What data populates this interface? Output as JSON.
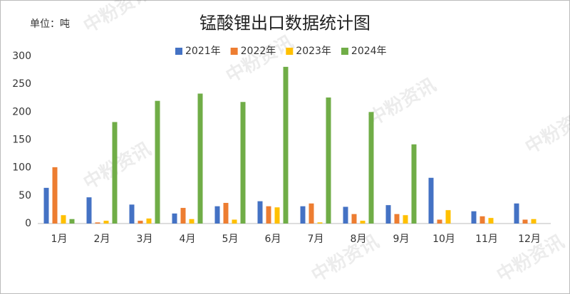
{
  "chart_data": {
    "type": "bar",
    "title": "锰酸锂出口数据统计图",
    "unit_label": "单位：吨",
    "watermark": "中粉资讯",
    "categories": [
      "1月",
      "2月",
      "3月",
      "4月",
      "5月",
      "6月",
      "7月",
      "8月",
      "9月",
      "10月",
      "11月",
      "12月"
    ],
    "series": [
      {
        "name": "2021年",
        "color": "#4472c4",
        "values": [
          64,
          47,
          34,
          18,
          31,
          40,
          31,
          30,
          33,
          82,
          22,
          36
        ]
      },
      {
        "name": "2022年",
        "color": "#ed7d31",
        "values": [
          101,
          2,
          5,
          28,
          37,
          31,
          36,
          17,
          17,
          7,
          13,
          7
        ]
      },
      {
        "name": "2023年",
        "color": "#ffc000",
        "values": [
          15,
          5,
          9,
          8,
          7,
          29,
          2,
          5,
          15,
          24,
          10,
          8
        ]
      },
      {
        "name": "2024年",
        "color": "#70ad47",
        "values": [
          8,
          182,
          220,
          233,
          218,
          281,
          226,
          200,
          142,
          null,
          null,
          null
        ]
      }
    ],
    "ylim": [
      0,
      300
    ],
    "yticks": [
      0,
      50,
      100,
      150,
      200,
      250,
      300
    ],
    "grid": false
  }
}
